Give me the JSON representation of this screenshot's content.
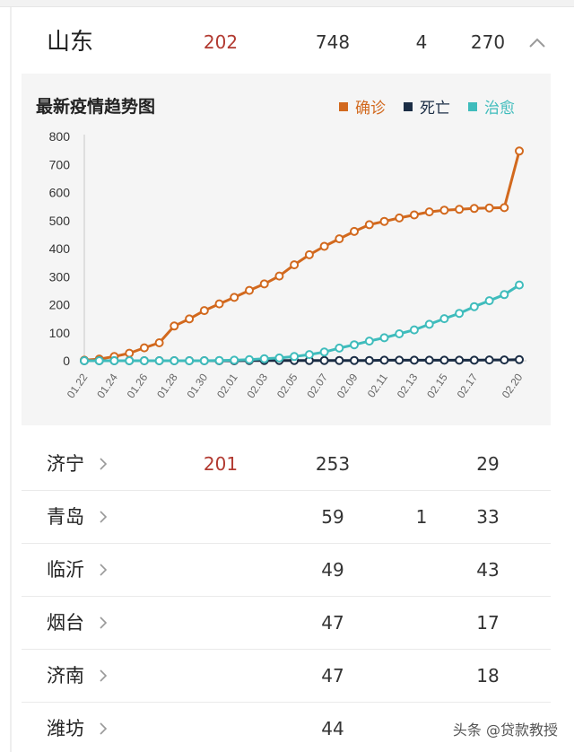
{
  "province": {
    "name": "山东",
    "new_confirmed": "202",
    "total_confirmed": "748",
    "deaths": "4",
    "cured": "270"
  },
  "chart": {
    "title": "最新疫情趋势图"
  },
  "legend": [
    {
      "label": "确诊",
      "color": "#d2691e"
    },
    {
      "label": "死亡",
      "color": "#1b2d45"
    },
    {
      "label": "治愈",
      "color": "#3fbcbc"
    }
  ],
  "chart_data": {
    "type": "line",
    "x": [
      "01.22",
      "01.23",
      "01.24",
      "01.25",
      "01.26",
      "01.27",
      "01.28",
      "01.29",
      "01.30",
      "01.31",
      "02.01",
      "02.02",
      "02.03",
      "02.04",
      "02.05",
      "02.06",
      "02.07",
      "02.08",
      "02.09",
      "02.10",
      "02.11",
      "02.12",
      "02.13",
      "02.14",
      "02.15",
      "02.16",
      "02.17",
      "02.18",
      "02.19",
      "02.20"
    ],
    "x_tick_labels": [
      "01.22",
      "01.24",
      "01.26",
      "01.28",
      "01.30",
      "02.01",
      "02.03",
      "02.05",
      "02.07",
      "02.09",
      "02.11",
      "02.13",
      "02.15",
      "02.17",
      "02.20"
    ],
    "ylim": [
      0,
      800
    ],
    "y_ticks": [
      "0",
      "100",
      "200",
      "300",
      "400",
      "500",
      "600",
      "700",
      "800"
    ],
    "grid": "y-major",
    "legend_position": "top-right",
    "series": [
      {
        "name": "确诊",
        "color": "#d2691e",
        "values": [
          2,
          6,
          15,
          27,
          46,
          64,
          124,
          149,
          179,
          203,
          226,
          251,
          274,
          302,
          342,
          378,
          408,
          435,
          461,
          485,
          497,
          509,
          520,
          531,
          537,
          540,
          543,
          545,
          546,
          748
        ]
      },
      {
        "name": "死亡",
        "color": "#1b2d45",
        "values": [
          0,
          0,
          0,
          0,
          0,
          0,
          0,
          0,
          0,
          0,
          0,
          1,
          1,
          1,
          1,
          1,
          1,
          1,
          1,
          1,
          2,
          2,
          2,
          2,
          2,
          2,
          2,
          3,
          3,
          4
        ]
      },
      {
        "name": "治愈",
        "color": "#3fbcbc",
        "values": [
          0,
          0,
          0,
          0,
          0,
          0,
          0,
          0,
          0,
          1,
          2,
          4,
          7,
          10,
          15,
          22,
          31,
          45,
          57,
          70,
          82,
          96,
          110,
          130,
          150,
          169,
          193,
          214,
          236,
          270
        ]
      }
    ]
  },
  "cities": [
    {
      "name": "济宁",
      "new_confirmed": "201",
      "total": "253",
      "deaths": "",
      "cured": "29"
    },
    {
      "name": "青岛",
      "new_confirmed": "",
      "total": "59",
      "deaths": "1",
      "cured": "33"
    },
    {
      "name": "临沂",
      "new_confirmed": "",
      "total": "49",
      "deaths": "",
      "cured": "43"
    },
    {
      "name": "烟台",
      "new_confirmed": "",
      "total": "47",
      "deaths": "",
      "cured": "17"
    },
    {
      "name": "济南",
      "new_confirmed": "",
      "total": "47",
      "deaths": "",
      "cured": "18"
    },
    {
      "name": "潍坊",
      "new_confirmed": "",
      "total": "44",
      "deaths": "",
      "cured": ""
    }
  ],
  "watermark": "头条 @贷款教授"
}
